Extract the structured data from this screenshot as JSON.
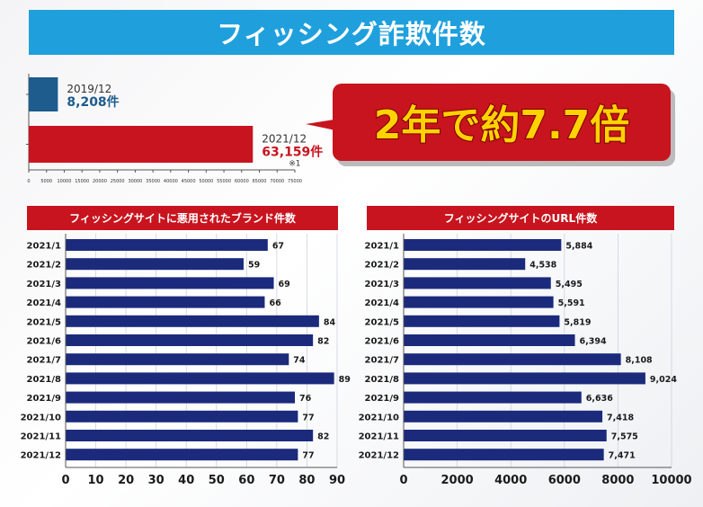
{
  "title": "フィッシング詐欺件数",
  "callout": {
    "text": "2年で約7.7倍"
  },
  "colors": {
    "banner": "#1fa0dc",
    "red": "#c8141e",
    "navy": "#1c2a7c",
    "steel": "#1d5c8c"
  },
  "chart_data": [
    {
      "type": "bar",
      "orientation": "horizontal",
      "categories": [
        "2019/12",
        "2021/12"
      ],
      "values": [
        8208,
        63159
      ],
      "value_labels": [
        "8,208件",
        "63,159件"
      ],
      "note": "※1",
      "xlim": [
        0,
        75000
      ],
      "x_ticks": [
        0,
        5000,
        10000,
        15000,
        20000,
        25000,
        30000,
        35000,
        40000,
        45000,
        50000,
        55000,
        60000,
        65000,
        70000,
        75000
      ]
    },
    {
      "type": "bar",
      "orientation": "horizontal",
      "title": "フィッシングサイトに悪用されたブランド件数",
      "categories": [
        "2021/1",
        "2021/2",
        "2021/3",
        "2021/4",
        "2021/5",
        "2021/6",
        "2021/7",
        "2021/8",
        "2021/9",
        "2021/10",
        "2021/11",
        "2021/12"
      ],
      "values": [
        67,
        59,
        69,
        66,
        84,
        82,
        74,
        89,
        76,
        77,
        82,
        77
      ],
      "value_labels": [
        "67",
        "59",
        "69",
        "66",
        "84",
        "82",
        "74",
        "89",
        "76",
        "77",
        "82",
        "77"
      ],
      "xlim": [
        0,
        90
      ],
      "x_ticks": [
        0,
        10,
        20,
        30,
        40,
        50,
        60,
        70,
        80,
        90
      ]
    },
    {
      "type": "bar",
      "orientation": "horizontal",
      "title": "フィッシングサイトのURL件数",
      "categories": [
        "2021/1",
        "2021/2",
        "2021/3",
        "2021/4",
        "2021/5",
        "2021/6",
        "2021/7",
        "2021/8",
        "2021/9",
        "2021/10",
        "2021/11",
        "2021/12"
      ],
      "values": [
        5884,
        4538,
        5495,
        5591,
        5819,
        6394,
        8108,
        9024,
        6636,
        7418,
        7575,
        7471
      ],
      "value_labels": [
        "5,884",
        "4,538",
        "5,495",
        "5,591",
        "5,819",
        "6,394",
        "8,108",
        "9,024",
        "6,636",
        "7,418",
        "7,575",
        "7,471"
      ],
      "xlim": [
        0,
        10000
      ],
      "x_ticks": [
        0,
        2000,
        4000,
        6000,
        8000,
        10000
      ]
    }
  ]
}
